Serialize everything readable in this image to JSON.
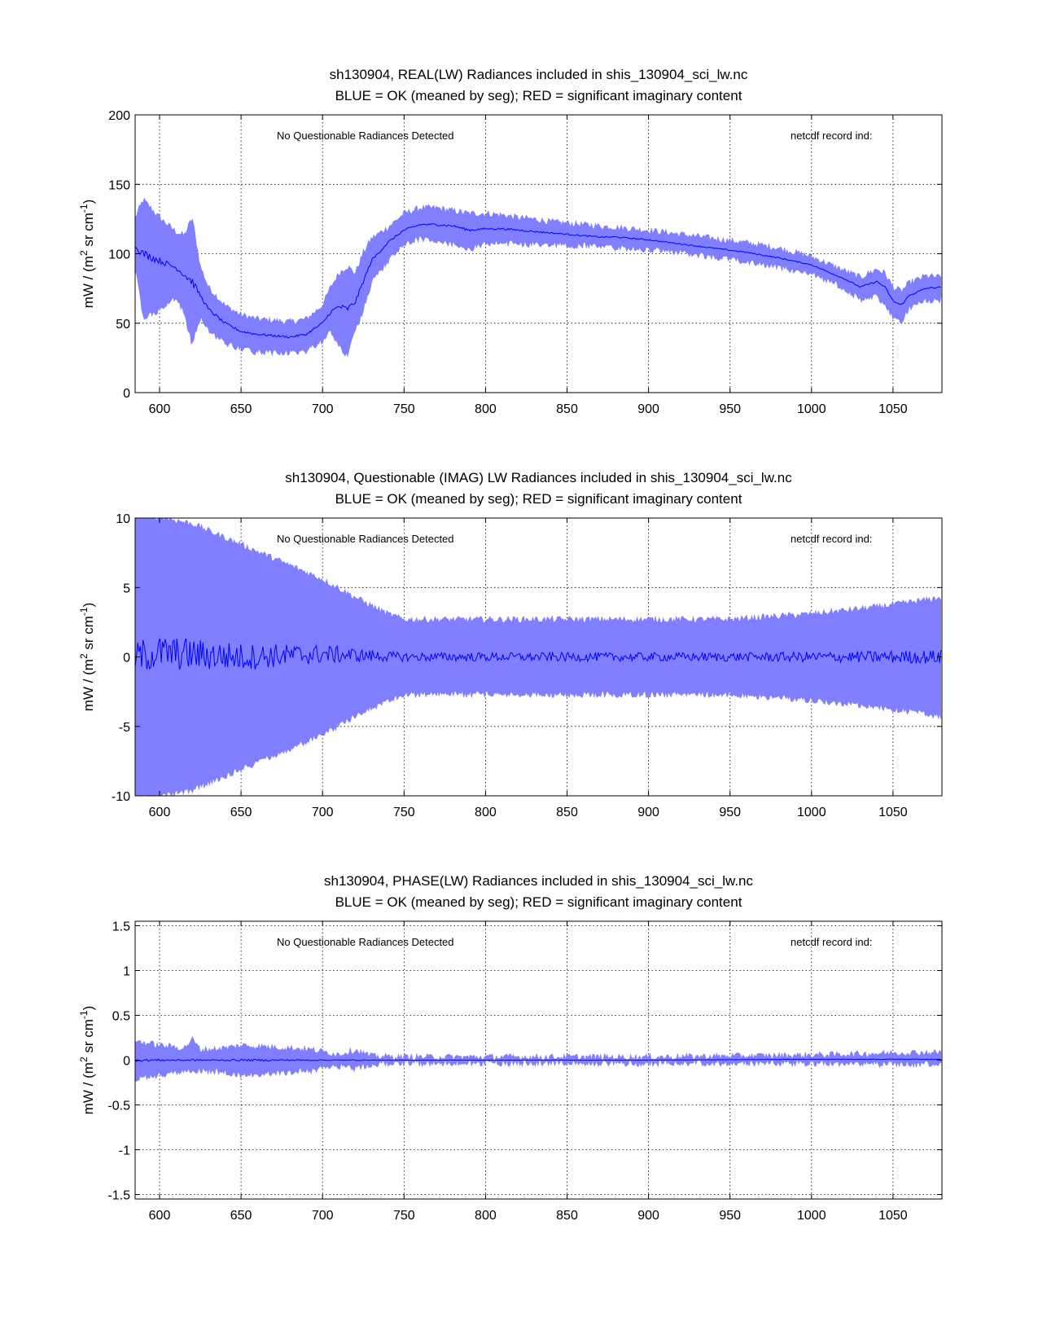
{
  "colors": {
    "envelope": "#7f7fff",
    "mean": "#0000ff",
    "axis": "#000000"
  },
  "chart_data": [
    {
      "type": "line",
      "title_lines": [
        "sh130904, REAL(LW) Radiances included in shis_130904_sci_lw.nc",
        "BLUE = OK (meaned by seg); RED = significant imaginary content"
      ],
      "ylabel": "mW / (m2 sr cm-1)",
      "xlabel": "",
      "xlim": [
        585,
        1080
      ],
      "ylim": [
        0,
        200
      ],
      "xticks": [
        600,
        650,
        700,
        750,
        800,
        850,
        900,
        950,
        1000,
        1050
      ],
      "yticks": [
        0,
        50,
        100,
        150,
        200
      ],
      "ytick_labels": [
        "0",
        "50",
        "100",
        "150",
        "200"
      ],
      "grid": true,
      "annotations": [
        "No Questionable Radiances Detected",
        "netcdf record ind:"
      ],
      "series": [
        {
          "name": "upper envelope",
          "x": [
            585,
            590,
            600,
            610,
            615,
            620,
            625,
            630,
            640,
            650,
            660,
            670,
            680,
            690,
            700,
            705,
            710,
            715,
            720,
            725,
            730,
            740,
            750,
            760,
            770,
            780,
            790,
            800,
            810,
            820,
            830,
            840,
            850,
            860,
            870,
            880,
            900,
            920,
            940,
            960,
            980,
            1000,
            1010,
            1020,
            1030,
            1040,
            1045,
            1050,
            1055,
            1060,
            1070,
            1080
          ],
          "values": [
            125,
            138,
            125,
            115,
            112,
            125,
            90,
            75,
            62,
            55,
            52,
            51,
            50,
            52,
            62,
            75,
            85,
            90,
            85,
            100,
            110,
            118,
            128,
            132,
            132,
            130,
            128,
            128,
            127,
            125,
            124,
            122,
            121,
            120,
            119,
            118,
            116,
            113,
            110,
            107,
            103,
            97,
            92,
            87,
            82,
            88,
            85,
            75,
            72,
            78,
            83,
            82
          ]
        },
        {
          "name": "lower envelope",
          "x": [
            585,
            590,
            600,
            610,
            615,
            620,
            625,
            630,
            640,
            650,
            660,
            670,
            680,
            690,
            700,
            705,
            710,
            715,
            720,
            725,
            730,
            740,
            750,
            760,
            770,
            780,
            790,
            800,
            810,
            820,
            830,
            840,
            850,
            860,
            870,
            880,
            900,
            920,
            940,
            960,
            980,
            1000,
            1010,
            1020,
            1030,
            1040,
            1045,
            1050,
            1055,
            1060,
            1070,
            1080
          ],
          "values": [
            90,
            55,
            60,
            70,
            58,
            35,
            55,
            45,
            37,
            32,
            30,
            30,
            30,
            31,
            38,
            45,
            35,
            28,
            45,
            60,
            80,
            95,
            108,
            112,
            110,
            108,
            104,
            108,
            109,
            108,
            108,
            108,
            107,
            107,
            106,
            105,
            104,
            102,
            98,
            95,
            91,
            86,
            81,
            76,
            68,
            70,
            65,
            55,
            52,
            62,
            67,
            68
          ]
        },
        {
          "name": "mean",
          "x": [
            585,
            590,
            600,
            610,
            615,
            620,
            625,
            630,
            640,
            650,
            660,
            670,
            680,
            690,
            700,
            705,
            710,
            715,
            720,
            725,
            730,
            740,
            750,
            760,
            770,
            780,
            790,
            800,
            810,
            820,
            830,
            840,
            850,
            860,
            870,
            880,
            900,
            920,
            940,
            960,
            980,
            1000,
            1010,
            1020,
            1030,
            1040,
            1045,
            1050,
            1055,
            1060,
            1070,
            1080
          ],
          "values": [
            105,
            100,
            95,
            90,
            85,
            80,
            70,
            60,
            50,
            44,
            42,
            41,
            40,
            42,
            50,
            58,
            62,
            60,
            65,
            80,
            95,
            108,
            117,
            121,
            121,
            120,
            117,
            118,
            118,
            117,
            116,
            115,
            114,
            113,
            112,
            112,
            110,
            107,
            104,
            101,
            97,
            92,
            87,
            82,
            76,
            80,
            76,
            66,
            63,
            70,
            75,
            76
          ]
        }
      ]
    },
    {
      "type": "line",
      "title_lines": [
        "sh130904, Questionable (IMAG) LW Radiances included in shis_130904_sci_lw.nc",
        "BLUE = OK (meaned by seg); RED = significant imaginary content"
      ],
      "ylabel": "mW / (m2 sr cm-1)",
      "xlabel": "",
      "xlim": [
        585,
        1080
      ],
      "ylim": [
        -10,
        10
      ],
      "xticks": [
        600,
        650,
        700,
        750,
        800,
        850,
        900,
        950,
        1000,
        1050
      ],
      "yticks": [
        -10,
        -5,
        0,
        5,
        10
      ],
      "ytick_labels": [
        "-10",
        "-5",
        "0",
        "5",
        "10"
      ],
      "grid": true,
      "annotations": [
        "No Questionable Radiances Detected",
        "netcdf record ind:"
      ],
      "series": [
        {
          "name": "upper envelope",
          "x": [
            585,
            600,
            620,
            640,
            660,
            680,
            700,
            720,
            740,
            750,
            800,
            850,
            900,
            950,
            1000,
            1040,
            1070,
            1080
          ],
          "values": [
            10,
            10,
            9.5,
            8.5,
            7.5,
            6.5,
            5.5,
            4.2,
            3.0,
            2.6,
            2.6,
            2.6,
            2.6,
            2.6,
            3.0,
            3.5,
            4.0,
            4.2
          ]
        },
        {
          "name": "lower envelope",
          "x": [
            585,
            600,
            620,
            640,
            660,
            680,
            700,
            720,
            740,
            750,
            800,
            850,
            900,
            950,
            1000,
            1040,
            1070,
            1080
          ],
          "values": [
            -10,
            -10,
            -9.5,
            -8.5,
            -7.5,
            -6.5,
            -5.5,
            -4.2,
            -3.0,
            -2.6,
            -2.6,
            -2.6,
            -2.6,
            -2.6,
            -3.0,
            -3.5,
            -4.0,
            -4.2
          ]
        },
        {
          "name": "mean",
          "x": [
            585,
            600,
            650,
            700,
            750,
            800,
            850,
            900,
            950,
            1000,
            1050,
            1080
          ],
          "values": [
            0,
            0.3,
            0,
            0.2,
            0,
            0,
            0,
            0,
            0,
            0,
            0,
            0
          ]
        }
      ]
    },
    {
      "type": "line",
      "title_lines": [
        "sh130904, PHASE(LW) Radiances included in shis_130904_sci_lw.nc",
        "BLUE = OK (meaned by seg); RED = significant imaginary content"
      ],
      "ylabel": "mW / (m2 sr cm-1)",
      "xlabel": "",
      "xlim": [
        585,
        1080
      ],
      "ylim": [
        -1.55,
        1.55
      ],
      "xticks": [
        600,
        650,
        700,
        750,
        800,
        850,
        900,
        950,
        1000,
        1050
      ],
      "yticks": [
        -1.5,
        -1,
        -0.5,
        0,
        0.5,
        1,
        1.5
      ],
      "ytick_labels": [
        "-1.5",
        "-1",
        "-0.5",
        "0",
        "0.5",
        "1",
        "1.5"
      ],
      "grid": true,
      "annotations": [
        "No Questionable Radiances Detected",
        "netcdf record ind:"
      ],
      "series": [
        {
          "name": "upper envelope",
          "x": [
            585,
            600,
            615,
            620,
            625,
            640,
            650,
            670,
            690,
            700,
            710,
            720,
            730,
            750,
            800,
            900,
            1000,
            1040,
            1060,
            1080
          ],
          "values": [
            0.2,
            0.15,
            0.12,
            0.22,
            0.1,
            0.12,
            0.15,
            0.13,
            0.11,
            0.08,
            0.05,
            0.1,
            0.03,
            0.02,
            0.02,
            0.02,
            0.04,
            0.06,
            0.07,
            0.07
          ]
        },
        {
          "name": "lower envelope",
          "x": [
            585,
            600,
            615,
            620,
            625,
            640,
            650,
            670,
            690,
            700,
            710,
            720,
            730,
            750,
            800,
            900,
            1000,
            1040,
            1060,
            1080
          ],
          "values": [
            -0.2,
            -0.15,
            -0.12,
            -0.1,
            -0.1,
            -0.12,
            -0.15,
            -0.13,
            -0.11,
            -0.08,
            -0.05,
            -0.08,
            -0.03,
            -0.02,
            -0.02,
            -0.02,
            -0.02,
            -0.03,
            -0.03,
            -0.03
          ]
        },
        {
          "name": "mean",
          "x": [
            585,
            650,
            700,
            750,
            800,
            900,
            1000,
            1080
          ],
          "values": [
            0,
            0,
            0,
            0,
            0,
            0,
            0.01,
            0.01
          ]
        }
      ]
    }
  ]
}
